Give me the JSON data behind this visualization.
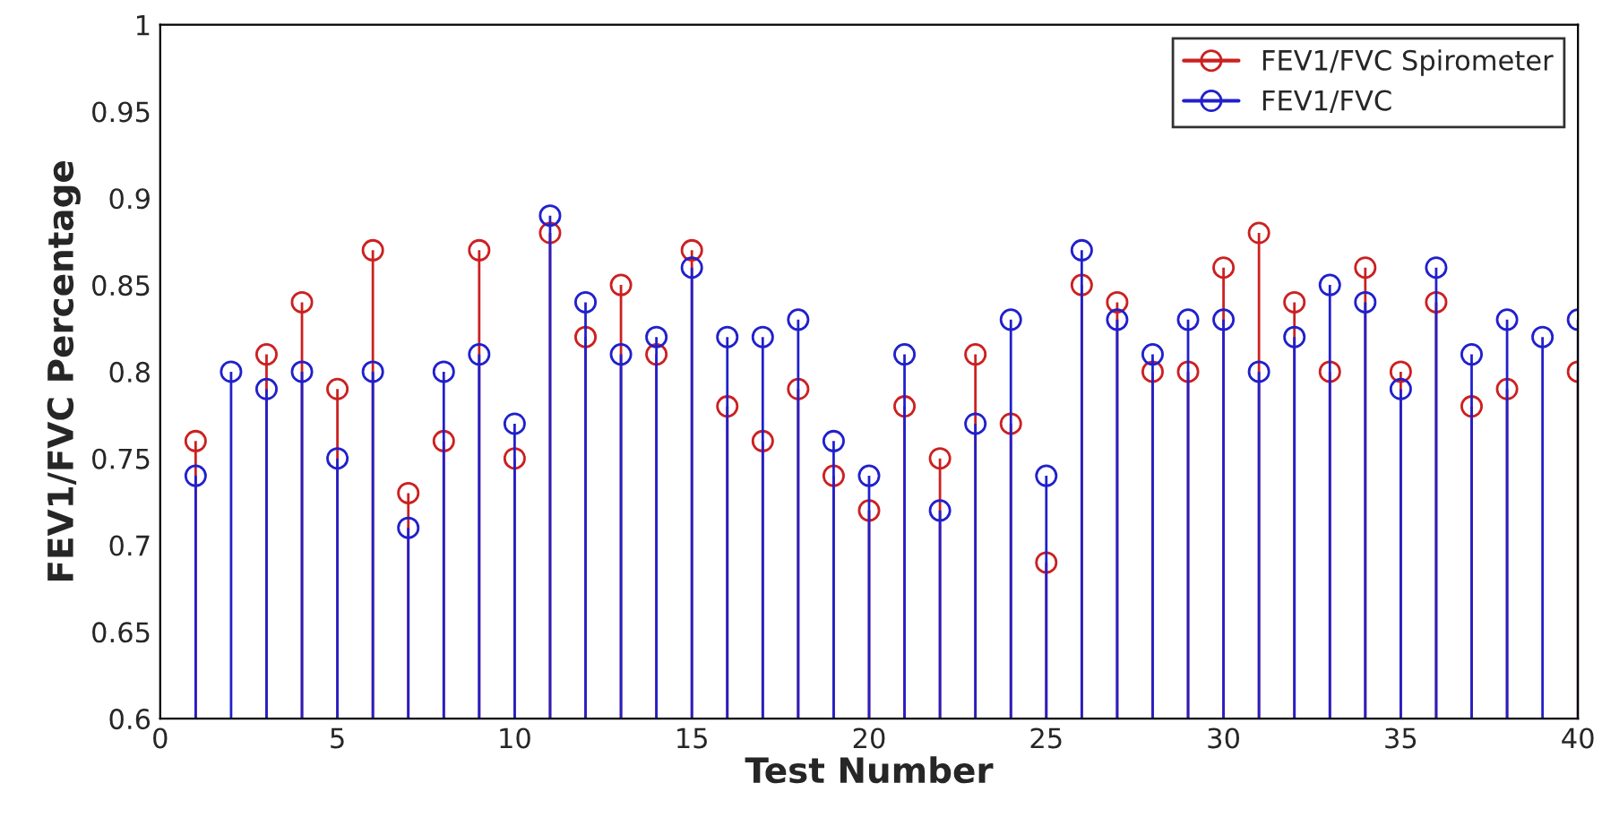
{
  "chart_data": {
    "type": "lollipop",
    "xlabel": "Test Number",
    "ylabel": "FEV1/FVC Percentage",
    "x": [
      1,
      2,
      3,
      4,
      5,
      6,
      7,
      8,
      9,
      10,
      11,
      12,
      13,
      14,
      15,
      16,
      17,
      18,
      19,
      20,
      21,
      22,
      23,
      24,
      25,
      26,
      27,
      28,
      29,
      30,
      31,
      32,
      33,
      34,
      35,
      36,
      37,
      38,
      39,
      40
    ],
    "series": [
      {
        "name": "FEV1/FVC Spirometer",
        "color": "#cc2020",
        "values": [
          0.76,
          null,
          0.81,
          0.84,
          0.79,
          0.87,
          0.73,
          0.76,
          0.87,
          0.75,
          0.88,
          0.82,
          0.85,
          0.81,
          0.87,
          0.78,
          0.76,
          0.79,
          0.74,
          0.72,
          0.78,
          0.75,
          0.81,
          0.77,
          0.69,
          0.85,
          0.84,
          0.8,
          0.8,
          0.86,
          0.88,
          0.84,
          0.8,
          0.86,
          0.8,
          0.84,
          0.78,
          0.79,
          null,
          0.8
        ]
      },
      {
        "name": "FEV1/FVC",
        "color": "#2020cc",
        "values": [
          0.74,
          0.8,
          0.79,
          0.8,
          0.75,
          0.8,
          0.71,
          0.8,
          0.81,
          0.77,
          0.89,
          0.84,
          0.81,
          0.82,
          0.86,
          0.82,
          0.82,
          0.83,
          0.76,
          0.74,
          0.81,
          0.72,
          0.77,
          0.83,
          0.74,
          0.87,
          0.83,
          0.81,
          0.83,
          0.83,
          0.8,
          0.82,
          0.85,
          0.84,
          0.79,
          0.86,
          0.81,
          0.83,
          0.82,
          0.83
        ]
      }
    ],
    "xlim": [
      0,
      40
    ],
    "ylim": [
      0.6,
      1
    ],
    "xticks": [
      0,
      5,
      10,
      15,
      20,
      25,
      30,
      35,
      40
    ],
    "yticks": [
      0.6,
      0.65,
      0.7,
      0.75,
      0.8,
      0.85,
      0.9,
      0.95,
      1
    ],
    "marker": "circle",
    "grid": false,
    "legend": "top right"
  }
}
